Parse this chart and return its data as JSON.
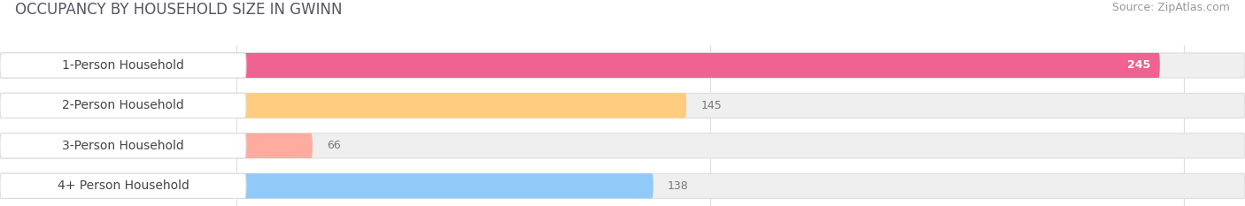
{
  "title": "OCCUPANCY BY HOUSEHOLD SIZE IN GWINN",
  "source": "Source: ZipAtlas.com",
  "categories": [
    "1-Person Household",
    "2-Person Household",
    "3-Person Household",
    "4+ Person Household"
  ],
  "values": [
    245,
    145,
    66,
    138
  ],
  "bar_colors": [
    "#F06292",
    "#FFCC80",
    "#FFAB9F",
    "#90CAF9"
  ],
  "xlim": [
    0,
    263
  ],
  "xticks": [
    50,
    150,
    250
  ],
  "background_color": "#FFFFFF",
  "bar_bg_color": "#EFEFEF",
  "title_fontsize": 12,
  "source_fontsize": 9,
  "label_fontsize": 10,
  "value_fontsize": 9
}
